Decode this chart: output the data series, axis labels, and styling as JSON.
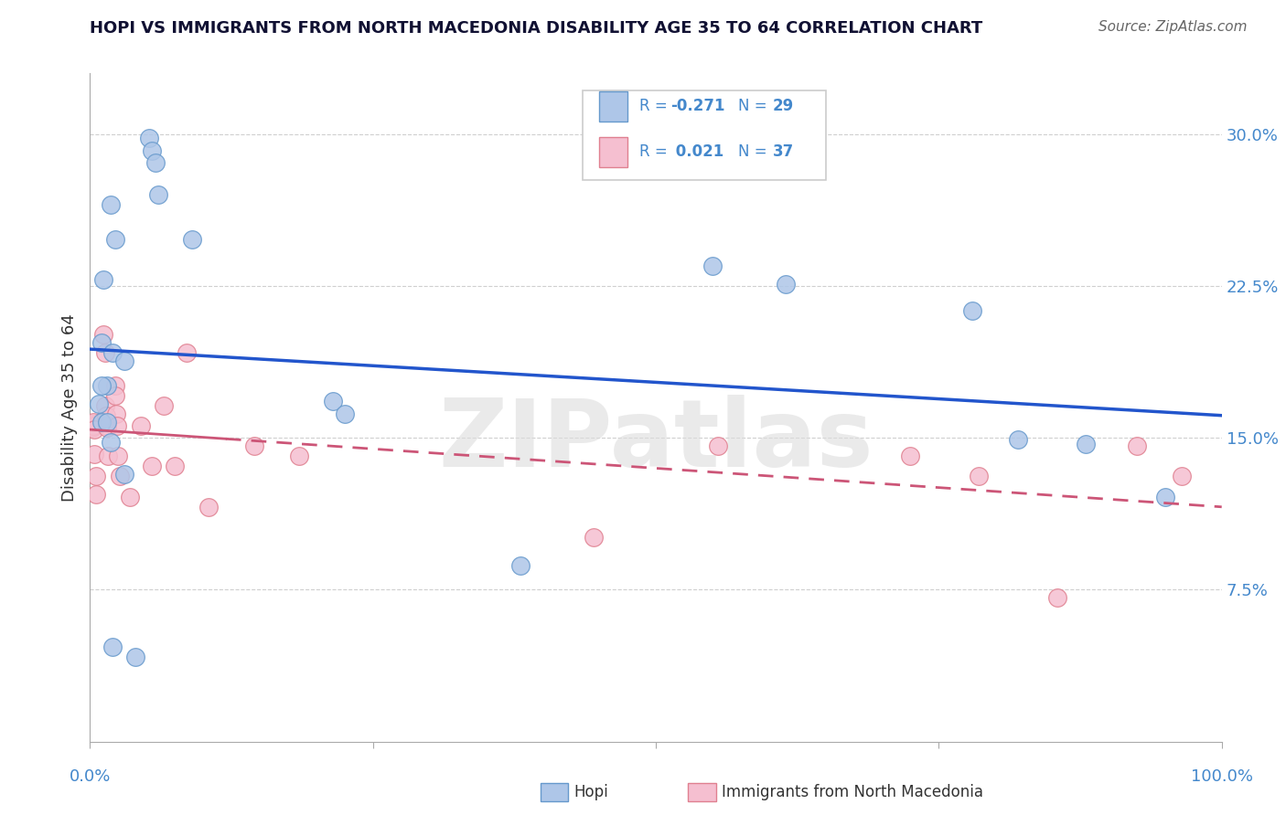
{
  "title": "HOPI VS IMMIGRANTS FROM NORTH MACEDONIA DISABILITY AGE 35 TO 64 CORRELATION CHART",
  "source": "Source: ZipAtlas.com",
  "ylabel": "Disability Age 35 to 64",
  "ytick_vals": [
    0.075,
    0.15,
    0.225,
    0.3
  ],
  "ytick_labels": [
    "7.5%",
    "15.0%",
    "22.5%",
    "30.0%"
  ],
  "xlim": [
    0.0,
    1.0
  ],
  "ylim": [
    0.0,
    0.33
  ],
  "legend_r_hopi": "-0.271",
  "legend_n_hopi": "29",
  "legend_r_immig": "0.021",
  "legend_n_immig": "37",
  "hopi_color": "#aec6e8",
  "hopi_edge_color": "#6699cc",
  "immig_color": "#f5bfd0",
  "immig_edge_color": "#e08090",
  "trendline_hopi_color": "#2255cc",
  "trendline_immig_color": "#cc5577",
  "watermark": "ZIPatlas",
  "hopi_x": [
    0.018,
    0.052,
    0.055,
    0.058,
    0.06,
    0.022,
    0.09,
    0.012,
    0.01,
    0.02,
    0.03,
    0.015,
    0.01,
    0.008,
    0.01,
    0.015,
    0.018,
    0.03,
    0.215,
    0.225,
    0.38,
    0.55,
    0.615,
    0.78,
    0.82,
    0.88,
    0.95,
    0.04,
    0.02
  ],
  "hopi_y": [
    0.265,
    0.298,
    0.292,
    0.286,
    0.27,
    0.248,
    0.248,
    0.228,
    0.197,
    0.192,
    0.188,
    0.176,
    0.176,
    0.167,
    0.158,
    0.158,
    0.148,
    0.132,
    0.168,
    0.162,
    0.087,
    0.235,
    0.226,
    0.213,
    0.149,
    0.147,
    0.121,
    0.042,
    0.047
  ],
  "immig_x": [
    0.002,
    0.002,
    0.003,
    0.003,
    0.004,
    0.004,
    0.005,
    0.005,
    0.012,
    0.013,
    0.013,
    0.014,
    0.015,
    0.015,
    0.016,
    0.022,
    0.022,
    0.023,
    0.024,
    0.025,
    0.026,
    0.035,
    0.045,
    0.055,
    0.065,
    0.075,
    0.085,
    0.105,
    0.145,
    0.185,
    0.445,
    0.555,
    0.725,
    0.785,
    0.855,
    0.925,
    0.965
  ],
  "immig_y": [
    0.157,
    0.155,
    0.156,
    0.158,
    0.154,
    0.142,
    0.131,
    0.122,
    0.201,
    0.192,
    0.166,
    0.161,
    0.156,
    0.155,
    0.141,
    0.176,
    0.171,
    0.162,
    0.156,
    0.141,
    0.131,
    0.121,
    0.156,
    0.136,
    0.166,
    0.136,
    0.192,
    0.116,
    0.146,
    0.141,
    0.101,
    0.146,
    0.141,
    0.131,
    0.071,
    0.146,
    0.131
  ],
  "background_color": "#ffffff",
  "grid_color": "#bbbbbb"
}
